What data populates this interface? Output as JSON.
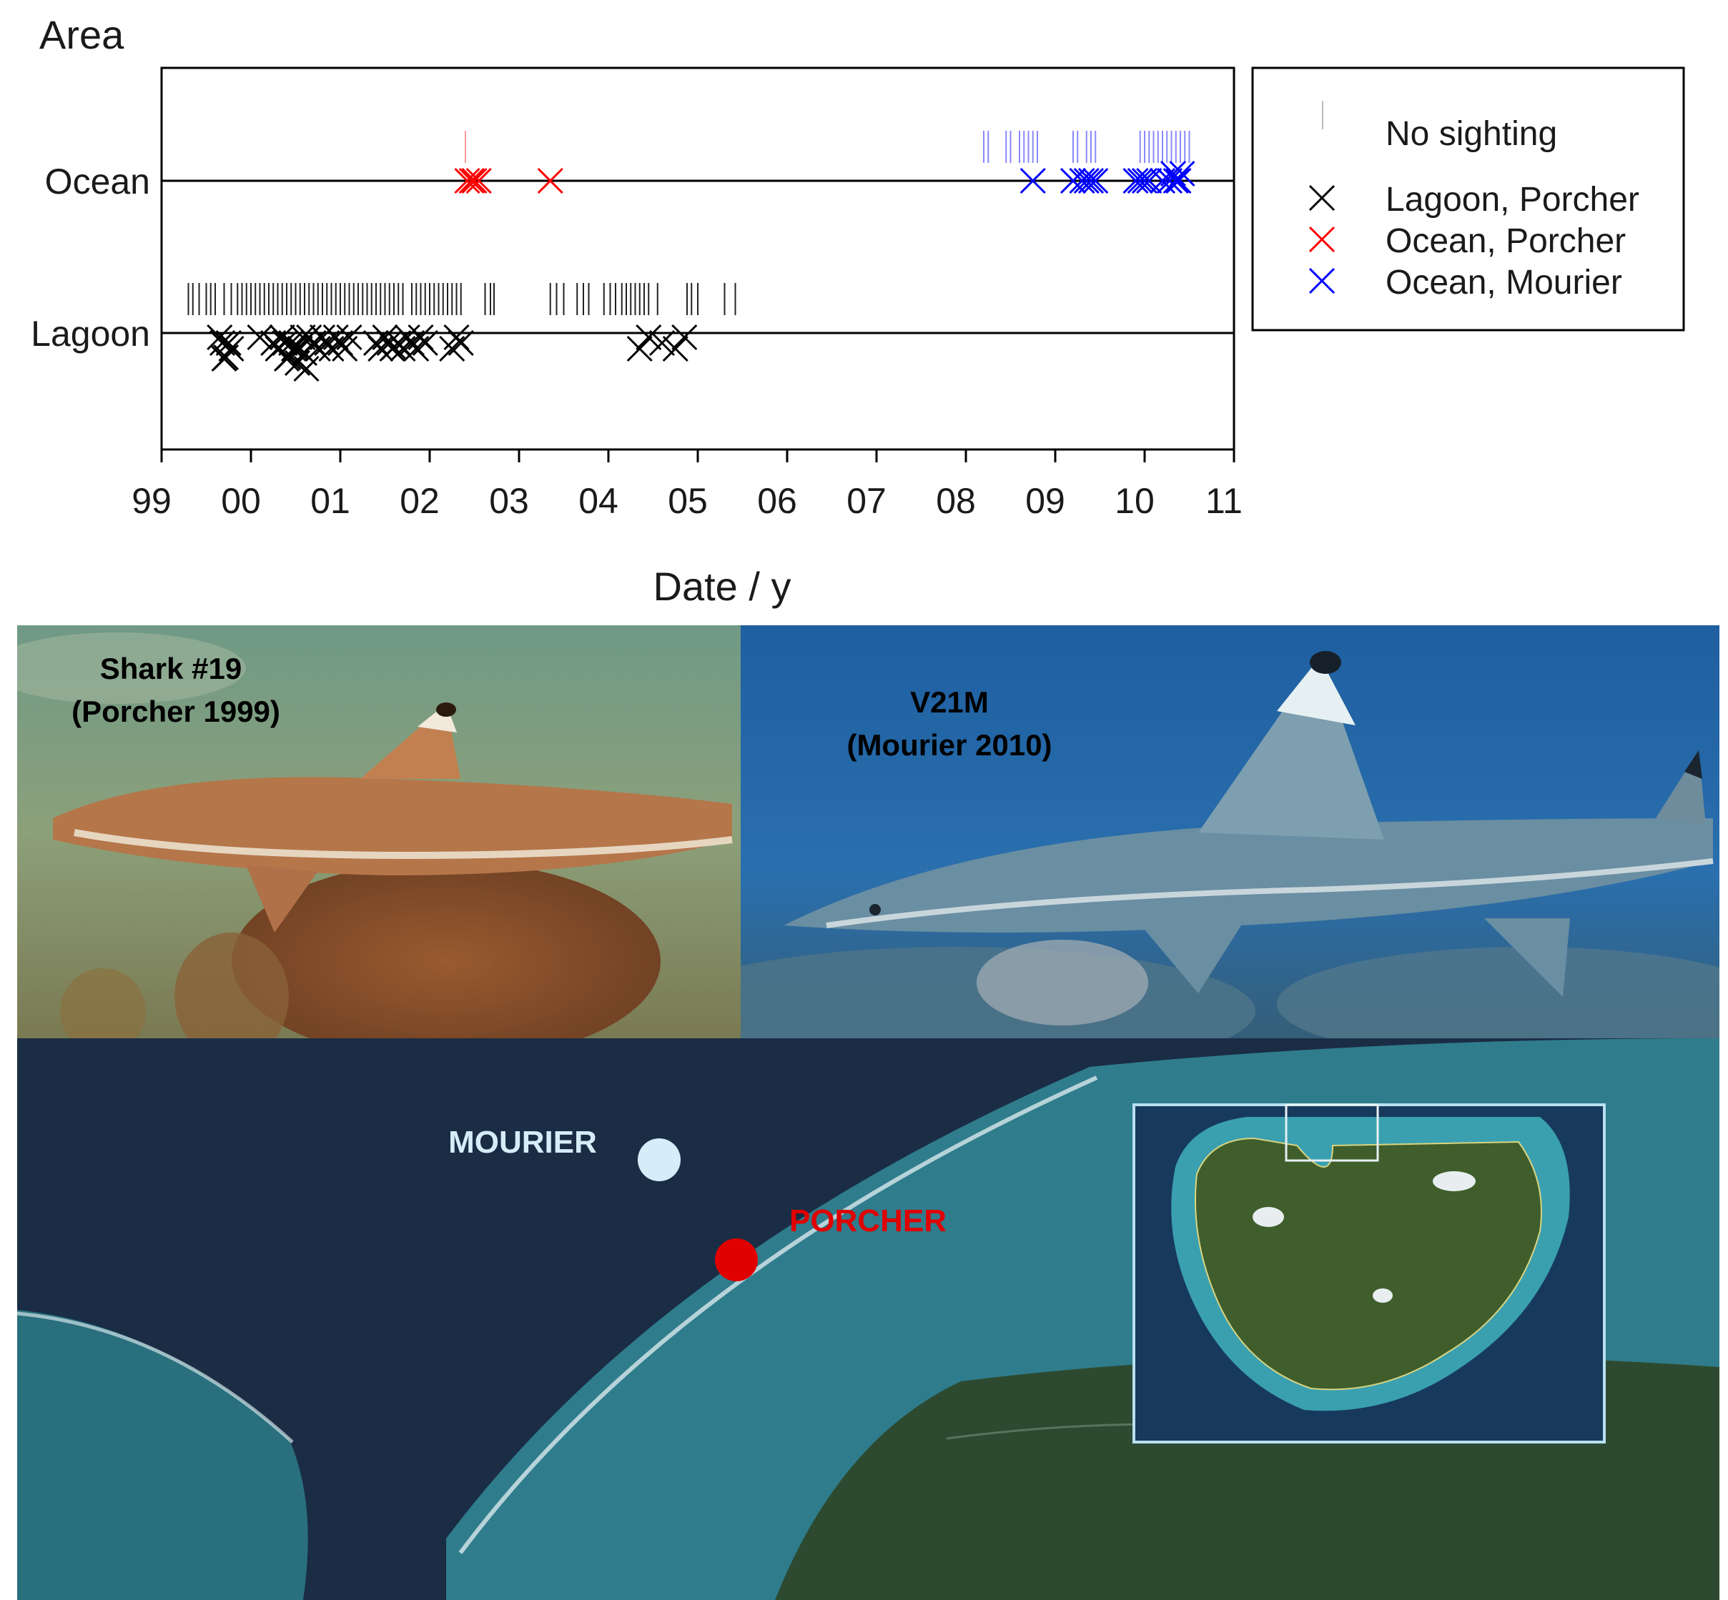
{
  "chart_data": {
    "type": "scatter",
    "title": "",
    "ylabel": "Area",
    "xlabel": "Date / y",
    "x_tick_labels": [
      "99",
      "00",
      "01",
      "02",
      "03",
      "04",
      "05",
      "06",
      "07",
      "08",
      "09",
      "10",
      "11"
    ],
    "y_categories": [
      "Lagoon",
      "Ocean"
    ],
    "xlim": [
      1999.0,
      2011.0
    ],
    "legend_position": "right",
    "legend": [
      {
        "label": "No sighting",
        "marker": "tick",
        "color": "#888888"
      },
      {
        "label": "Lagoon, Porcher",
        "marker": "x",
        "color": "#000000"
      },
      {
        "label": "Ocean, Porcher",
        "marker": "x",
        "color": "#ff0000"
      },
      {
        "label": "Ocean, Mourier",
        "marker": "x",
        "color": "#0000ff"
      }
    ],
    "series": [
      {
        "name": "Lagoon, Porcher",
        "area": "Lagoon",
        "color": "#000000",
        "sightings": [
          1999.65,
          1999.68,
          1999.7,
          1999.72,
          1999.75,
          1999.78,
          2000.1,
          2000.25,
          2000.3,
          2000.35,
          2000.38,
          2000.4,
          2000.42,
          2000.45,
          2000.48,
          2000.5,
          2000.52,
          2000.55,
          2000.58,
          2000.6,
          2000.62,
          2000.65,
          2000.7,
          2000.75,
          2000.8,
          2000.85,
          2000.9,
          2000.95,
          2001.0,
          2001.05,
          2001.1,
          2001.4,
          2001.45,
          2001.5,
          2001.55,
          2001.58,
          2001.6,
          2001.65,
          2001.7,
          2001.75,
          2001.8,
          2001.85,
          2001.9,
          2001.95,
          2002.25,
          2002.3,
          2002.35,
          2004.35,
          2004.45,
          2004.6,
          2004.75,
          2004.85
        ]
      },
      {
        "name": "Ocean, Porcher",
        "area": "Ocean",
        "color": "#ff0000",
        "sightings": [
          2002.42,
          2002.47,
          2002.5,
          2002.55,
          2003.35
        ]
      },
      {
        "name": "Ocean, Mourier",
        "area": "Ocean",
        "color": "#0000ff",
        "sightings": [
          2008.75,
          2009.2,
          2009.3,
          2009.35,
          2009.4,
          2009.45,
          2009.9,
          2009.95,
          2010.0,
          2010.05,
          2010.2,
          2010.28,
          2010.32,
          2010.35,
          2010.38,
          2010.42
        ]
      },
      {
        "name": "No sighting",
        "color": "#888888",
        "no_sighting": [
          {
            "area": "Lagoon",
            "color": "#222222",
            "dates": [
              1999.3,
              1999.35,
              1999.42,
              1999.5,
              1999.55,
              1999.6,
              1999.7,
              1999.78,
              1999.85,
              1999.9,
              1999.95,
              2000.0,
              2000.05,
              2000.1,
              2000.15,
              2000.2,
              2000.25,
              2000.3,
              2000.35,
              2000.4,
              2000.45,
              2000.5,
              2000.55,
              2000.6,
              2000.65,
              2000.7,
              2000.75,
              2000.8,
              2000.85,
              2000.9,
              2000.95,
              2001.0,
              2001.05,
              2001.1,
              2001.15,
              2001.2,
              2001.25,
              2001.3,
              2001.35,
              2001.4,
              2001.45,
              2001.5,
              2001.55,
              2001.6,
              2001.65,
              2001.7,
              2001.8,
              2001.85,
              2001.9,
              2001.95,
              2002.0,
              2002.05,
              2002.1,
              2002.15,
              2002.2,
              2002.25,
              2002.3,
              2002.35,
              2002.62,
              2002.68,
              2002.72,
              2003.35,
              2003.42,
              2003.5,
              2003.65,
              2003.72,
              2003.78,
              2003.95,
              2004.02,
              2004.08,
              2004.15,
              2004.2,
              2004.25,
              2004.3,
              2004.35,
              2004.4,
              2004.45,
              2004.55,
              2004.88,
              2004.93,
              2005.0,
              2005.3,
              2005.42
            ]
          },
          {
            "area": "Ocean",
            "color": "#ff9999",
            "dates": [
              2002.4
            ]
          },
          {
            "area": "Ocean",
            "color": "#8888ff",
            "dates": [
              2008.2,
              2008.25,
              2008.45,
              2008.5,
              2008.6,
              2008.65,
              2008.7,
              2008.75,
              2008.8,
              2009.2,
              2009.25,
              2009.35,
              2009.4,
              2009.45,
              2009.95,
              2010.0,
              2010.05,
              2010.1,
              2010.15,
              2010.2,
              2010.25,
              2010.3,
              2010.35,
              2010.4,
              2010.45,
              2010.5
            ]
          }
        ]
      }
    ]
  },
  "photos": [
    {
      "label_line1": "Shark #19",
      "label_line2": "(Porcher 1999)"
    },
    {
      "label_line1": "V21M",
      "label_line2": "(Mourier 2010)"
    }
  ],
  "map": {
    "sites": [
      {
        "label": "MOURIER",
        "color": "#d6ecf8"
      },
      {
        "label": "PORCHER",
        "color": "#e00000"
      }
    ]
  }
}
